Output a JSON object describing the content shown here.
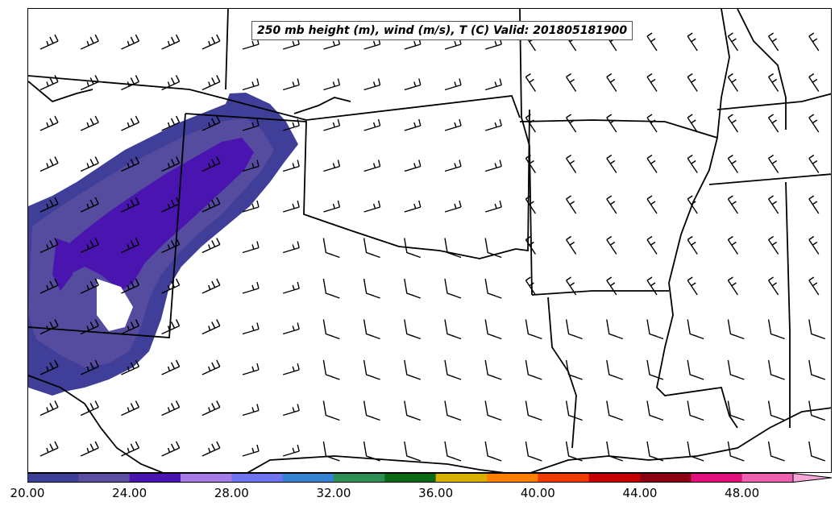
{
  "title": "250 mb height (m), wind (m/s), T (C) Valid: 201805181900",
  "colorbar": {
    "tick_labels": [
      "20.00",
      "24.00",
      "28.00",
      "32.00",
      "36.00",
      "40.00",
      "44.00",
      "48.00"
    ],
    "colors": [
      "#3b3f95",
      "#5a4fa3",
      "#4a14b0",
      "#a67ce6",
      "#6f74f2",
      "#3383d2",
      "#2e8f55",
      "#0b6b14",
      "#d9b000",
      "#ff7f00",
      "#ee3b00",
      "#c40000",
      "#8a0012",
      "#e0107a",
      "#f060b0",
      "#f7a6d8"
    ]
  },
  "legend_units": "wind barbs (m/s)"
}
